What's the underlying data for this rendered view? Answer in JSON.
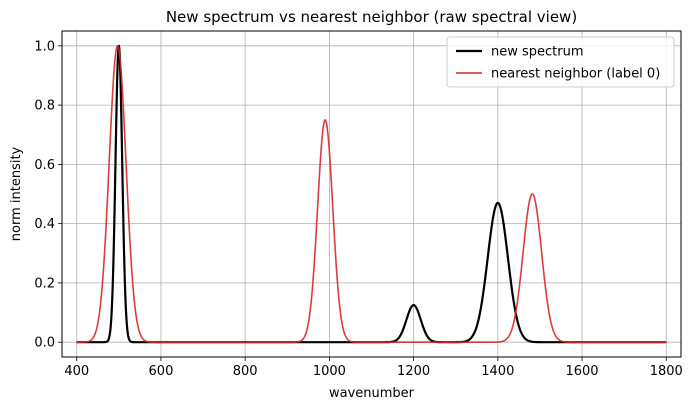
{
  "chart_data": {
    "type": "line",
    "title": "New spectrum vs nearest neighbor (raw spectral view)",
    "xlabel": "wavenumber",
    "ylabel": "norm intensity",
    "xlim": [
      365,
      1835
    ],
    "ylim": [
      -0.05,
      1.05
    ],
    "x_ticks": [
      400,
      600,
      800,
      1000,
      1200,
      1400,
      1600,
      1800
    ],
    "x_tick_labels": [
      "400",
      "600",
      "800",
      "1000",
      "1200",
      "1400",
      "1600",
      "1800"
    ],
    "y_ticks": [
      0.0,
      0.2,
      0.4,
      0.6,
      0.8,
      1.0
    ],
    "y_tick_labels": [
      "0.0",
      "0.2",
      "0.4",
      "0.6",
      "0.8",
      "1.0"
    ],
    "grid": true,
    "legend_position": "top-right",
    "x_range": [
      400,
      1800
    ],
    "series": [
      {
        "name": "new spectrum",
        "color": "#000000",
        "peaks": [
          {
            "center": 500,
            "height": 1.0,
            "width": 8
          },
          {
            "center": 1200,
            "height": 0.125,
            "width": 17
          },
          {
            "center": 1400,
            "height": 0.47,
            "width": 24
          }
        ]
      },
      {
        "name": "nearest neighbor (label 0)",
        "color": "#d62728",
        "peaks": [
          {
            "center": 497,
            "height": 1.0,
            "width": 20
          },
          {
            "center": 990,
            "height": 0.75,
            "width": 18
          },
          {
            "center": 1482,
            "height": 0.5,
            "width": 22
          }
        ]
      }
    ]
  }
}
